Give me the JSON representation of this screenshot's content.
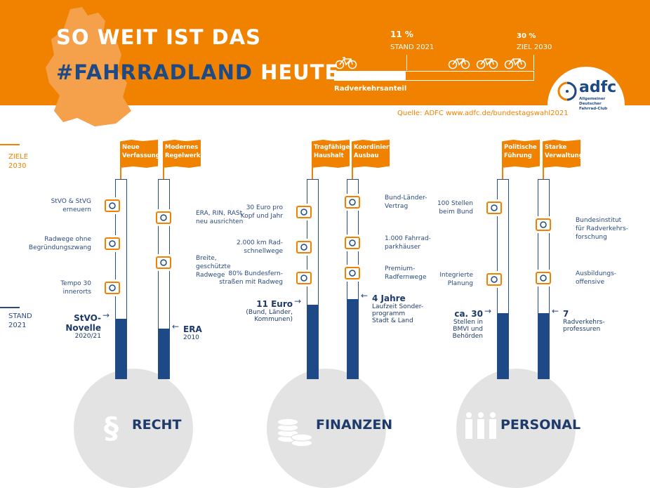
{
  "header": {
    "title_line1": "SO WEIT IST DAS",
    "title_line2_hashtag": "#FAHRRADLAND",
    "title_line2_rest": "HEUTE",
    "current_value": "11 %",
    "current_label": "STAND 2021",
    "target_value": "30 %",
    "target_label": "ZIEL 2030",
    "bar_label": "Radverkehrsanteil",
    "progress_percent": 11,
    "target_percent": 30,
    "source": "Quelle: ADFC www.adfc.de/bundestagswahl2021",
    "logo": {
      "name": "adfc",
      "subtitle": "Allgemeiner Deutscher Fahrrad-Club"
    }
  },
  "side_labels": {
    "goals_line1": "ZIELE",
    "goals_line2": "2030",
    "status_line1": "STAND",
    "status_line2": "2021"
  },
  "colors": {
    "orange": "#f08200",
    "navy": "#1d4a86",
    "gray": "#e3e3e3"
  },
  "categories": [
    {
      "name": "RECHT",
      "icon": "paragraph-icon",
      "pillars": [
        {
          "flag": [
            "Neue",
            "Verfassung"
          ],
          "goals": [
            [
              "StVO & StVG",
              "erneuern"
            ],
            [
              "Radwege ohne",
              "Begründungszwang"
            ],
            [
              "Tempo 30",
              "innerorts"
            ]
          ],
          "status": {
            "main": [
              "StVO-",
              "Novelle"
            ],
            "sub": [
              "2020/21"
            ]
          },
          "fill_fraction": 0.3
        },
        {
          "flag": [
            "Modernes",
            "Regelwerk"
          ],
          "goals": [
            [
              "ERA, RIN, RASt",
              "neu ausrichten"
            ],
            [
              "Breite,",
              "geschützte",
              "Radwege"
            ]
          ],
          "status": {
            "main": [
              "ERA"
            ],
            "sub": [
              "2010"
            ]
          },
          "fill_fraction": 0.25
        }
      ]
    },
    {
      "name": "FINANZEN",
      "icon": "coins-icon",
      "pillars": [
        {
          "flag": [
            "Tragfähiger",
            "Haushalt"
          ],
          "goals": [
            [
              "30 Euro pro",
              "Kopf und Jahr"
            ],
            [
              "2.000 km Rad-",
              "schnellwege"
            ],
            [
              "80% Bundesfern-",
              "straßen mit Radweg"
            ]
          ],
          "status": {
            "main": [
              "11 Euro"
            ],
            "sub": [
              "(Bund, Länder,",
              "Kommunen)"
            ]
          },
          "fill_fraction": 0.37
        },
        {
          "flag": [
            "Koordinierter",
            "Ausbau"
          ],
          "goals": [
            [
              "Bund-Länder-",
              "Vertrag"
            ],
            [
              "1.000 Fahrrad-",
              "parkhäuser"
            ],
            [
              "Premium-",
              "Radfernwege"
            ]
          ],
          "status": {
            "main": [
              "4 Jahre"
            ],
            "sub": [
              "Laufzeit Sonder-",
              "programm",
              "Stadt & Land"
            ]
          },
          "fill_fraction": 0.4
        }
      ]
    },
    {
      "name": "PERSONAL",
      "icon": "people-icon",
      "pillars": [
        {
          "flag": [
            "Politische",
            "Führung"
          ],
          "goals": [
            [
              "100 Stellen",
              "beim Bund"
            ],
            [
              "Integrierte",
              "Planung"
            ]
          ],
          "status": {
            "main": [
              "ca. 30"
            ],
            "sub": [
              "Stellen in",
              "BMVI und",
              "Behörden"
            ]
          },
          "fill_fraction": 0.33
        },
        {
          "flag": [
            "Starke",
            "Verwaltung"
          ],
          "goals": [
            [
              "Bundesinstitut",
              "für Radverkehrs-",
              "forschung"
            ],
            [
              "Ausbildungs-",
              "offensive"
            ]
          ],
          "status": {
            "main": [
              "7"
            ],
            "sub": [
              "Radverkehrs-",
              "professuren"
            ]
          },
          "fill_fraction": 0.33
        }
      ]
    }
  ]
}
